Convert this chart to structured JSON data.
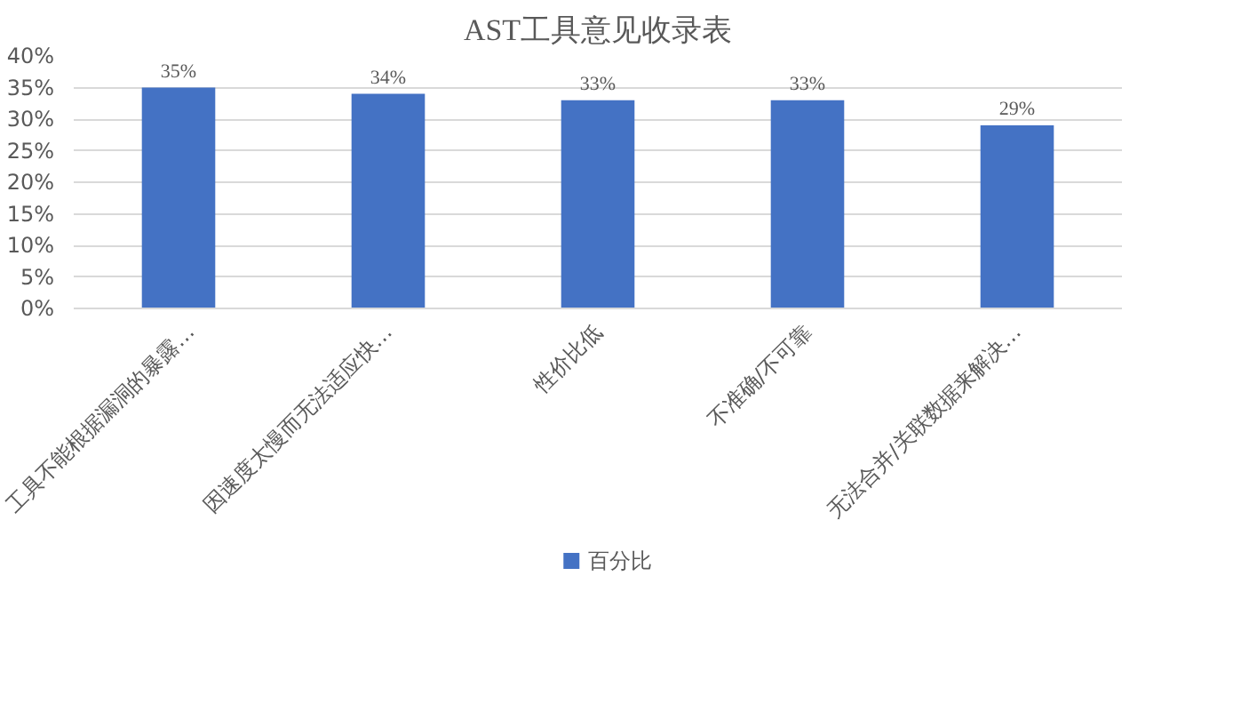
{
  "chart_data": {
    "type": "bar",
    "title": "AST工具意见收录表",
    "categories": [
      "工具不能根据漏洞的暴露…",
      "因速度太慢而无法适应快…",
      "性价比低",
      "不准确/不可靠",
      "无法合并/关联数据来解决…"
    ],
    "series": [
      {
        "name": "百分比",
        "color": "#4472c4",
        "values": [
          35,
          34,
          33,
          33,
          29
        ]
      }
    ],
    "value_labels": [
      "35%",
      "34%",
      "33%",
      "33%",
      "29%"
    ],
    "ylim": [
      0,
      40
    ],
    "yticks": [
      {
        "value": 0,
        "label": "0%"
      },
      {
        "value": 5,
        "label": "5%"
      },
      {
        "value": 10,
        "label": "10%"
      },
      {
        "value": 15,
        "label": "15%"
      },
      {
        "value": 20,
        "label": "20%"
      },
      {
        "value": 25,
        "label": "25%"
      },
      {
        "value": 30,
        "label": "30%"
      },
      {
        "value": 35,
        "label": "35%"
      },
      {
        "value": 40,
        "label": "40%"
      }
    ],
    "grid": "y",
    "legend": "bottom"
  }
}
